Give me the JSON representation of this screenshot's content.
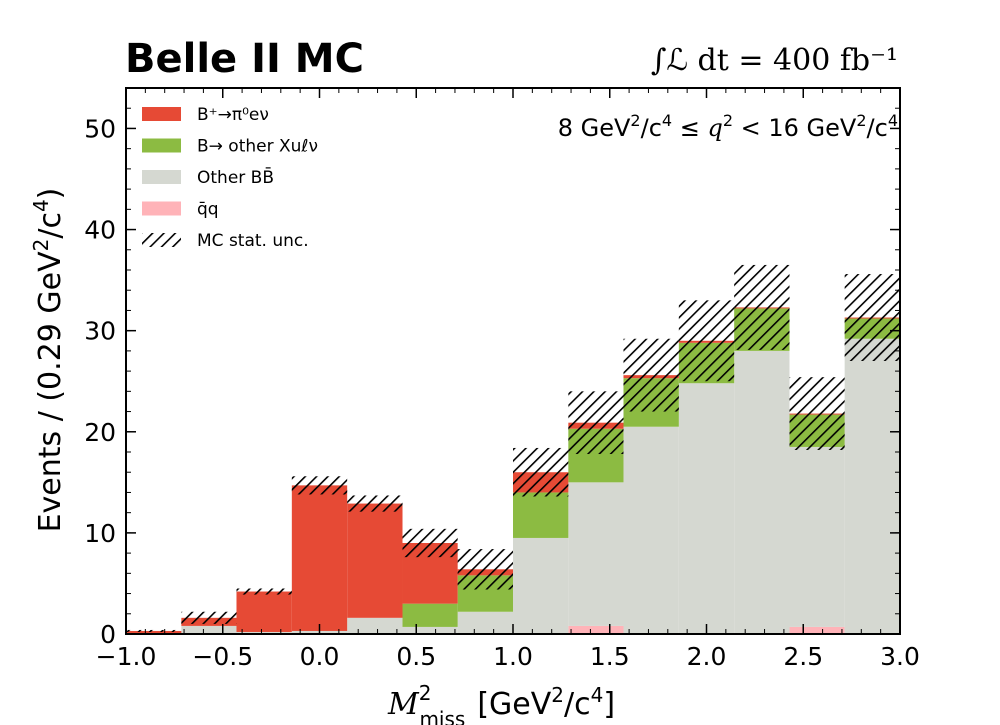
{
  "header": {
    "title": "Belle II MC",
    "lumi": "∫ℒ dt = 400 fb⁻¹"
  },
  "colors": {
    "signal": "#e64a35",
    "other_xu": "#8cbb42",
    "other_bb": "#d5d8d1",
    "qq": "#ffb3b8",
    "hatch": "#000000"
  },
  "chart_data": {
    "type": "bar",
    "stacked": true,
    "title": "Belle II MC",
    "annotation": "8 GeV²/c⁴ ≤ q² < 16 GeV²/c⁴",
    "xlabel": "M²miss [GeV²/c⁴]",
    "ylabel": "Events / (0.29 GeV²/c⁴)",
    "xlim": [
      -1.0,
      3.0
    ],
    "ylim": [
      0,
      54
    ],
    "xticks": [
      "−1.0",
      "−0.5",
      "0.0",
      "0.5",
      "1.0",
      "1.5",
      "2.0",
      "2.5",
      "3.0"
    ],
    "yticks": [
      "0",
      "10",
      "20",
      "30",
      "40",
      "50"
    ],
    "bin_edges": [
      -1.0,
      -0.714,
      -0.429,
      -0.143,
      0.143,
      0.429,
      0.714,
      1.0,
      1.286,
      1.571,
      1.857,
      2.143,
      2.429,
      2.714,
      3.0
    ],
    "series": [
      {
        "name": "qq̄",
        "legend": "q̄q",
        "color_key": "qq",
        "values": [
          0,
          0,
          0,
          0,
          0,
          0,
          0,
          0,
          0.8,
          0,
          0,
          0,
          0.7,
          0
        ]
      },
      {
        "name": "Other BB̄",
        "legend": "Other BB̄",
        "color_key": "other_bb",
        "values": [
          0,
          0.8,
          0.2,
          0.3,
          1.6,
          0.7,
          2.2,
          9.5,
          14.2,
          20.5,
          24.8,
          28.0,
          17.8,
          29.2
        ]
      },
      {
        "name": "B→ other Xuℓν",
        "legend": "B→ other Xuℓν",
        "color_key": "other_xu",
        "values": [
          0,
          0,
          0,
          0,
          0,
          2.3,
          3.6,
          4.5,
          5.3,
          4.8,
          4.0,
          4.2,
          3.2,
          2.0
        ]
      },
      {
        "name": "B⁺→π⁰eν",
        "legend": "B⁺→π⁰eν",
        "color_key": "signal",
        "values": [
          0.3,
          0.8,
          4.0,
          14.4,
          11.3,
          6.0,
          0.6,
          2.0,
          0.6,
          0.3,
          0.2,
          0.1,
          0.1,
          0.1
        ]
      }
    ],
    "mc_stat_unc": {
      "legend": "MC stat. unc.",
      "values": [
        0.1,
        0.6,
        0.3,
        0.9,
        0.8,
        1.4,
        2.0,
        2.4,
        3.1,
        3.6,
        4.0,
        4.2,
        3.6,
        4.3
      ]
    },
    "legend_order": [
      "B⁺→π⁰eν",
      "B→ other Xuℓν",
      "Other BB̄",
      "qq̄",
      "MC stat. unc."
    ],
    "legend_position": "top-left",
    "grid": false
  }
}
